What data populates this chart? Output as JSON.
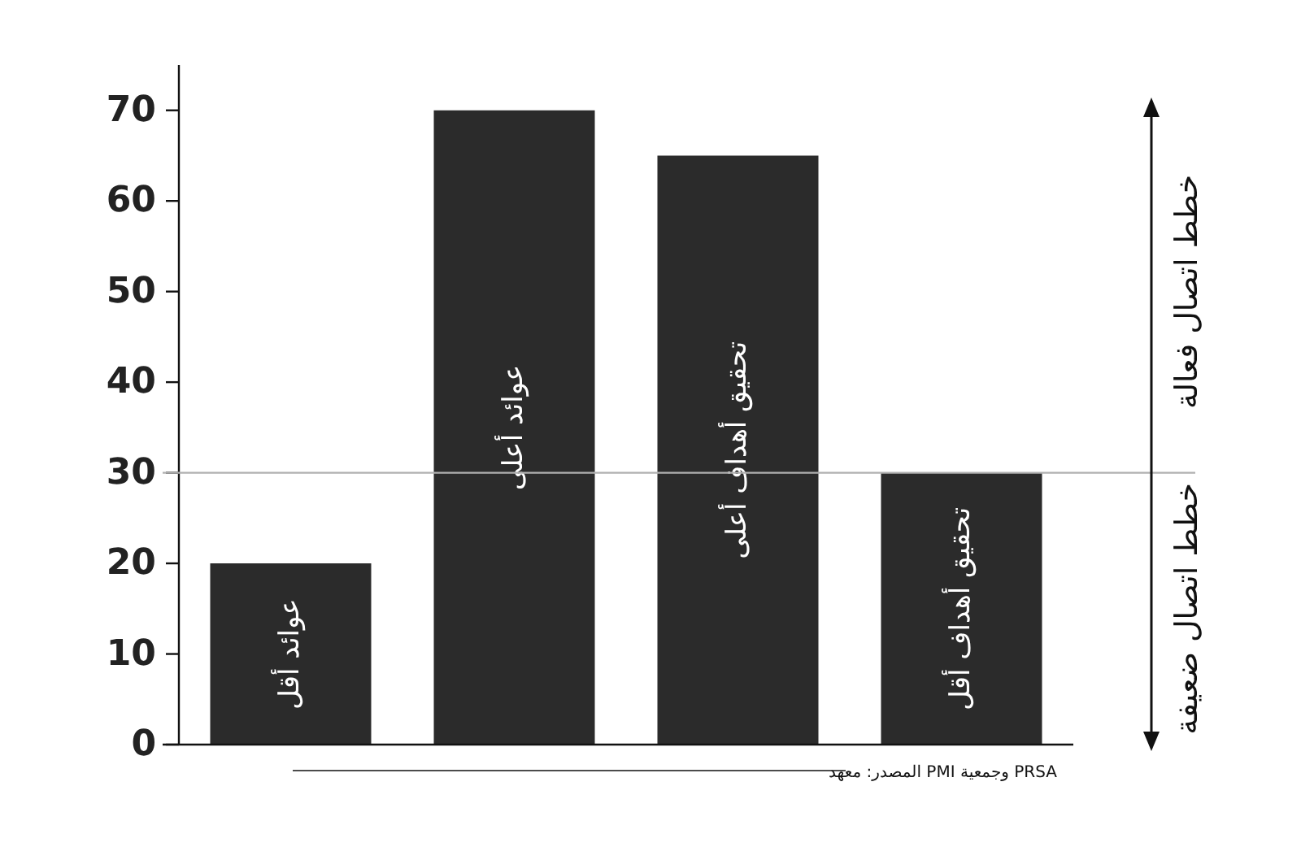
{
  "chart_data": {
    "type": "bar",
    "categories": [
      null,
      null,
      null,
      null
    ],
    "value_labels": [
      "عوائد أقل",
      "عوائد أعلى",
      "تحقيق أهداف أعلى",
      "تحقيق أهداف أقل"
    ],
    "values": [
      20,
      70,
      65,
      30
    ],
    "color": "#2b2b2b",
    "ylim": [
      0,
      75
    ],
    "yticks": [
      0,
      10,
      20,
      30,
      40,
      50,
      60,
      70
    ],
    "grid": false,
    "ref_lines": [
      {
        "axis": "y",
        "value": 30,
        "color": "#b0b0b0"
      }
    ],
    "annotations": [
      "خطط اتصال فعالة",
      "خطط اتصال ضعيفة",
      "المصدر: معهد PMI وجمعية PRSA"
    ]
  }
}
